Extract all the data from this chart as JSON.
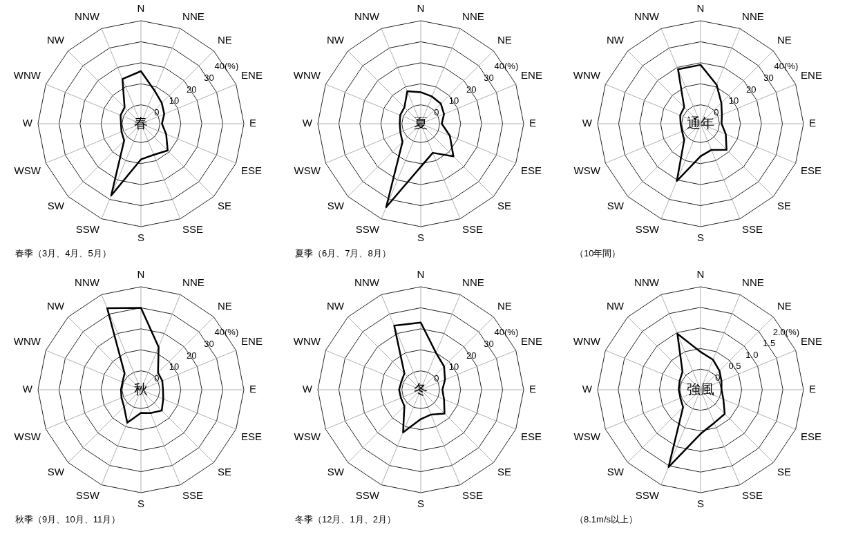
{
  "chart_data": [
    {
      "type": "radar",
      "title": "春",
      "annotations": [
        "春季（3月、4月、5月）"
      ],
      "categories": [
        "N",
        "NNE",
        "NE",
        "ENE",
        "E",
        "ESE",
        "SE",
        "SSE",
        "S",
        "SSW",
        "SW",
        "WSW",
        "W",
        "WNW",
        "NW",
        "NNW"
      ],
      "series": [
        {
          "color": "#000000",
          "values": [
            16,
            8,
            5,
            3,
            1,
            4,
            9,
            7,
            8,
            28,
            2.3,
            1,
            0.5,
            1.5,
            2,
            14
          ]
        }
      ],
      "ylim": [
        -9,
        40
      ],
      "yticks": [
        0,
        10,
        20,
        30,
        {
          "value": 40,
          "label": "40(%)"
        }
      ],
      "grid": true
    },
    {
      "type": "radar",
      "title": "夏",
      "annotations": [
        "夏季（6月、7月、8月）"
      ],
      "categories": [
        "N",
        "NNE",
        "NE",
        "ENE",
        "E",
        "ESE",
        "SE",
        "SSE",
        "S",
        "SSW",
        "SW",
        "WSW",
        "W",
        "WNW",
        "NW",
        "NNW"
      ],
      "series": [
        {
          "color": "#000000",
          "values": [
            6,
            5,
            4.5,
            3,
            1,
            6,
            13,
            6,
            11.5,
            34,
            3.3,
            1.5,
            1,
            1.6,
            2,
            7.7
          ]
        }
      ],
      "ylim": [
        -9,
        40
      ],
      "yticks": [
        0,
        10,
        20,
        30,
        {
          "value": 40,
          "label": "40(%)"
        }
      ],
      "grid": true
    },
    {
      "type": "radar",
      "title": "通年",
      "annotations": [
        "（10年間）"
      ],
      "categories": [
        "N",
        "NNE",
        "NE",
        "ENE",
        "E",
        "ESE",
        "SE",
        "SSE",
        "S",
        "SSW",
        "SW",
        "WSW",
        "W",
        "WNW",
        "NW",
        "NNW"
      ],
      "series": [
        {
          "color": "#000000",
          "values": [
            19,
            11,
            5,
            2,
            1,
            4,
            8.5,
            4.5,
            6.5,
            20.5,
            2,
            0.5,
            0.5,
            1.5,
            2,
            19
          ]
        }
      ],
      "ylim": [
        -9,
        40
      ],
      "yticks": [
        0,
        10,
        20,
        30,
        {
          "value": 40,
          "label": "40(%)"
        }
      ],
      "grid": true
    },
    {
      "type": "radar",
      "title": "秋",
      "annotations": [
        "秋季（9月、10月、11月）"
      ],
      "categories": [
        "N",
        "NNE",
        "NE",
        "ENE",
        "E",
        "ESE",
        "SE",
        "SSE",
        "S",
        "SSW",
        "SW",
        "WSW",
        "W",
        "WNW",
        "NW",
        "NNW"
      ],
      "series": [
        {
          "color": "#000000",
          "values": [
            30,
            13,
            2.5,
            2,
            1.5,
            2.5,
            5,
            3,
            2,
            8,
            2.4,
            1,
            0.5,
            0.5,
            2,
            33
          ]
        }
      ],
      "ylim": [
        -9,
        40
      ],
      "yticks": [
        0,
        10,
        20,
        30,
        {
          "value": 40,
          "label": "40(%)"
        }
      ],
      "grid": true
    },
    {
      "type": "radar",
      "title": "冬",
      "annotations": [
        "冬季（12月、1月、2月）"
      ],
      "categories": [
        "N",
        "NNE",
        "NE",
        "ENE",
        "E",
        "ESE",
        "SE",
        "SSE",
        "S",
        "SSW",
        "SW",
        "WSW",
        "W",
        "WNW",
        "NW",
        "NNW"
      ],
      "series": [
        {
          "color": "#000000",
          "values": [
            23,
            10,
            6.7,
            3.5,
            1.3,
            3,
            7,
            3.8,
            5,
            13,
            2,
            1.2,
            1.3,
            1,
            2,
            24
          ]
        }
      ],
      "ylim": [
        -9,
        40
      ],
      "yticks": [
        0,
        10,
        20,
        30,
        {
          "value": 40,
          "label": "40(%)"
        }
      ],
      "grid": true
    },
    {
      "type": "radar",
      "title": "強風",
      "annotations": [
        "（8.1m/s以上）"
      ],
      "categories": [
        "N",
        "NNE",
        "NE",
        "ENE",
        "E",
        "ESE",
        "SE",
        "SSE",
        "S",
        "SSW",
        "SW",
        "WSW",
        "W",
        "WNW",
        "NW",
        "NNW"
      ],
      "series": [
        {
          "color": "#000000",
          "values": [
            0.42,
            0.29,
            0.15,
            0.05,
            0.01,
            0.1,
            0.33,
            0.37,
            0.57,
            1.53,
            0.1,
            0.03,
            0.03,
            0.05,
            0.12,
            0.97
          ]
        }
      ],
      "ylim": [
        -0.5,
        2
      ],
      "yticks": [
        0,
        0.5,
        {
          "value": 1,
          "label": "1.0"
        },
        1.5,
        {
          "value": 2,
          "label": "2.0(%)"
        }
      ],
      "grid": true
    }
  ]
}
